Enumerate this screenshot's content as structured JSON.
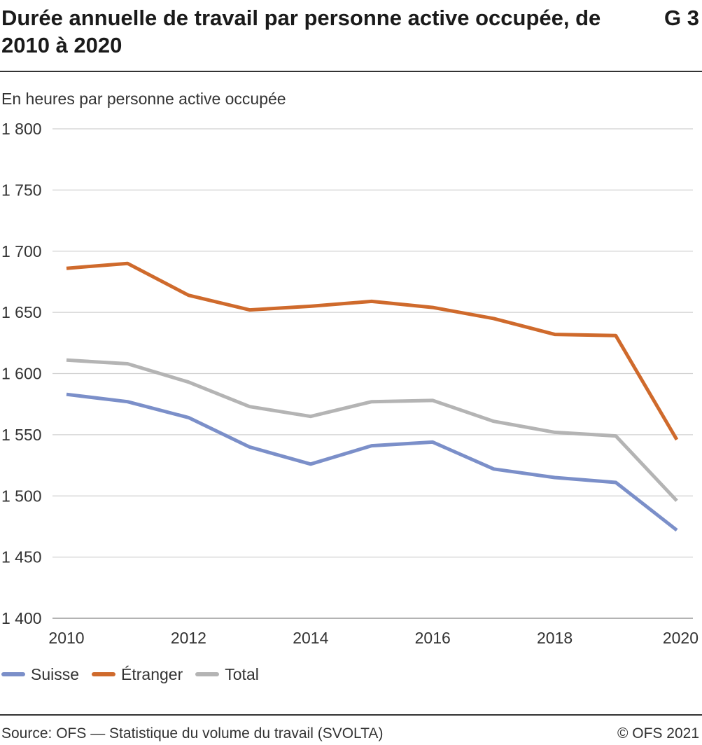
{
  "header": {
    "title": "Durée annuelle de travail par personne active occupée, de 2010 à 2020",
    "code": "G 3"
  },
  "chart_data": {
    "type": "line",
    "title": "Durée annuelle de travail par personne active occupée, de 2010 à 2020",
    "ylabel": "En heures par personne active occupée",
    "xlabel": "",
    "x": [
      2010,
      2011,
      2012,
      2013,
      2014,
      2015,
      2016,
      2017,
      2018,
      2019,
      2020
    ],
    "xlim": [
      2010,
      2020
    ],
    "ylim": [
      1400,
      1800
    ],
    "x_ticks": [
      2010,
      2012,
      2014,
      2016,
      2018,
      2020
    ],
    "y_ticks": [
      1400,
      1450,
      1500,
      1550,
      1600,
      1650,
      1700,
      1750,
      1800
    ],
    "y_tick_labels": [
      "1 400",
      "1 450",
      "1 500",
      "1 550",
      "1 600",
      "1 650",
      "1 700",
      "1 750",
      "1 800"
    ],
    "grid": "horizontal",
    "legend_position": "bottom-left",
    "series": [
      {
        "name": "Suisse",
        "color": "#7b8fc9",
        "values": [
          1583,
          1577,
          1564,
          1540,
          1526,
          1541,
          1544,
          1522,
          1515,
          1511,
          1472
        ]
      },
      {
        "name": "Étranger",
        "color": "#cf6a2c",
        "values": [
          1686,
          1690,
          1664,
          1652,
          1655,
          1659,
          1654,
          1645,
          1632,
          1631,
          1546
        ]
      },
      {
        "name": "Total",
        "color": "#b4b4b4",
        "values": [
          1611,
          1608,
          1593,
          1573,
          1565,
          1577,
          1578,
          1561,
          1552,
          1549,
          1496
        ]
      }
    ]
  },
  "footer": {
    "source": "Source: OFS — Statistique du volume du travail (SVOLTA)",
    "copyright": "© OFS 2021"
  }
}
